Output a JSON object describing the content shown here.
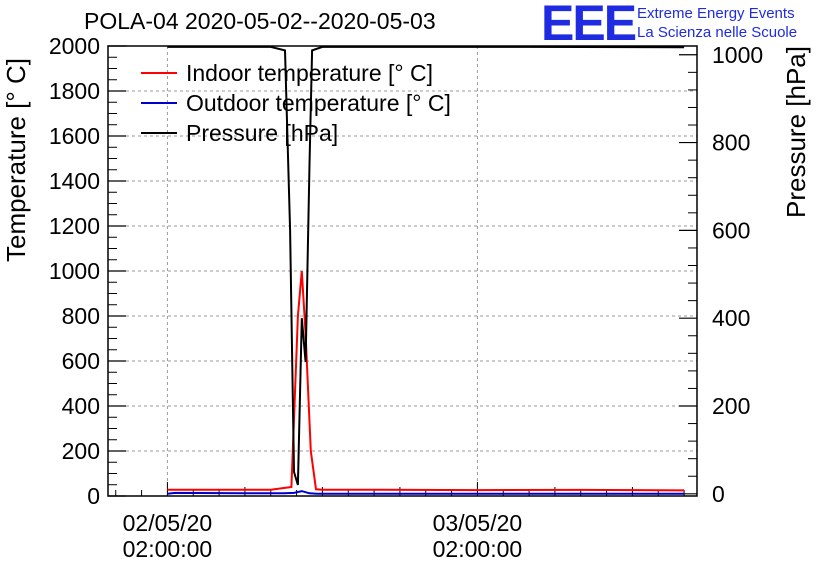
{
  "header": {
    "title": "POLA-04 2020-05-02--2020-05-03",
    "logo_text": "EEE",
    "logo_line1": "Extreme Energy Events",
    "logo_line2": "La Scienza nelle Scuole"
  },
  "colors": {
    "indoor": "#ff0000",
    "outdoor": "#0000cc",
    "pressure": "#000000",
    "logo": "#1f2be0",
    "grid": "#9a9a9a"
  },
  "chart_data": {
    "type": "line",
    "title": "POLA-04 2020-05-02--2020-05-03",
    "ylabel": "Temperature [° C]",
    "y2label": "Pressure [hPa]",
    "ylim": [
      0,
      2000
    ],
    "y2lim": [
      -5,
      1020
    ],
    "xlim": [
      -2.3,
      20.5
    ],
    "grid": true,
    "legend_position": "top-left",
    "y_ticks": [
      0,
      200,
      400,
      600,
      800,
      1000,
      1200,
      1400,
      1600,
      1800,
      2000
    ],
    "y2_ticks": [
      0,
      200,
      400,
      600,
      800,
      1000
    ],
    "x_ticks": [
      {
        "x": 0,
        "line1": "02/05/20",
        "line2": "02:00:00"
      },
      {
        "x": 12,
        "line1": "03/05/20",
        "line2": "02:00:00"
      }
    ],
    "x_units": "hours since 02/05/20 02:00:00",
    "series": [
      {
        "name": "Indoor temperature [° C]",
        "axis": "left",
        "x": [
          0.0,
          3.0,
          4.0,
          4.8,
          5.05,
          5.2,
          5.35,
          5.55,
          5.75,
          6.0,
          8.0,
          12.0,
          16.0,
          20.0
        ],
        "y": [
          28,
          28,
          28,
          40,
          800,
          1000,
          720,
          200,
          30,
          28,
          28,
          26,
          27,
          25
        ]
      },
      {
        "name": "Outdoor temperature [° C]",
        "axis": "left",
        "x": [
          0.0,
          0.3,
          3.0,
          4.5,
          4.9,
          5.2,
          5.5,
          5.8,
          8.0,
          12.0,
          16.0,
          20.0
        ],
        "y": [
          10,
          14,
          12,
          12,
          14,
          22,
          12,
          10,
          10,
          10,
          10,
          10
        ]
      },
      {
        "name": "Pressure [hPa]",
        "axis": "right",
        "x": [
          0.0,
          2.0,
          4.0,
          4.55,
          4.75,
          4.9,
          5.05,
          5.2,
          5.35,
          5.5,
          5.6,
          6.0,
          10.0,
          14.0,
          20.0
        ],
        "y": [
          1018,
          1018,
          1018,
          1010,
          600,
          50,
          20,
          400,
          300,
          750,
          1010,
          1018,
          1018,
          1018,
          1017
        ]
      }
    ]
  }
}
